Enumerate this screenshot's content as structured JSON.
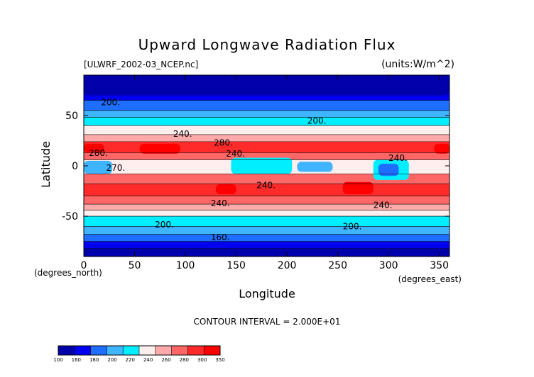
{
  "chart_data": {
    "type": "heatmap",
    "title": "Upward Longwave Radiation Flux",
    "file_label": "[ULWRF_2002-03_NCEP.nc]",
    "units_label": "(units:W/m^2)",
    "xlabel": "Longitude",
    "ylabel": "Latitude",
    "x_unit_label": "(degrees_east)",
    "y_unit_label": "(degrees_north)",
    "xlim": [
      0,
      360
    ],
    "ylim": [
      -90,
      90
    ],
    "x_ticks": [
      0,
      50,
      100,
      150,
      200,
      250,
      300,
      350
    ],
    "y_ticks": [
      -50,
      0,
      50
    ],
    "contour_interval_label": "CONTOUR INTERVAL = 2.000E+01",
    "contour_labels": [
      {
        "text": "200.",
        "lon": 17,
        "lat": 60
      },
      {
        "text": "200.",
        "lon": 220,
        "lat": 42
      },
      {
        "text": "240.",
        "lon": 88,
        "lat": 29
      },
      {
        "text": "280.",
        "lon": 128,
        "lat": 20
      },
      {
        "text": "240.",
        "lon": 140,
        "lat": 9
      },
      {
        "text": "280.",
        "lon": 5,
        "lat": 10
      },
      {
        "text": "270.",
        "lon": 22,
        "lat": -5
      },
      {
        "text": "240.",
        "lon": 300,
        "lat": 5
      },
      {
        "text": "240.",
        "lon": 170,
        "lat": -22
      },
      {
        "text": "240.",
        "lon": 125,
        "lat": -40
      },
      {
        "text": "240.",
        "lon": 285,
        "lat": -42
      },
      {
        "text": "200.",
        "lon": 70,
        "lat": -61
      },
      {
        "text": "200.",
        "lon": 255,
        "lat": -63
      },
      {
        "text": "160.",
        "lon": 125,
        "lat": -74
      }
    ],
    "colorbar": {
      "tick_labels": [
        "100",
        "160",
        "180",
        "200",
        "220",
        "240",
        "260",
        "280",
        "300",
        "350"
      ],
      "colors": [
        "#0000aa",
        "#0000f0",
        "#1e6eff",
        "#3fb4ff",
        "#00eeff",
        "#ffeeee",
        "#ffaaaa",
        "#ff6666",
        "#ff2a2a",
        "#ff0000"
      ]
    },
    "bands": [
      {
        "range": [
          -90,
          -82
        ],
        "level": 0
      },
      {
        "range": [
          -82,
          -75
        ],
        "level": 1
      },
      {
        "range": [
          -75,
          -68
        ],
        "level": 2
      },
      {
        "range": [
          -68,
          -60
        ],
        "level": 3
      },
      {
        "range": [
          -60,
          -50
        ],
        "level": 4
      },
      {
        "range": [
          -50,
          -44
        ],
        "level": 5
      },
      {
        "range": [
          -44,
          -38
        ],
        "level": 6
      },
      {
        "range": [
          -38,
          -30
        ],
        "level": 7
      },
      {
        "range": [
          -30,
          -18
        ],
        "level": 8
      },
      {
        "range": [
          -18,
          -8
        ],
        "level": 7
      },
      {
        "range": [
          -8,
          6
        ],
        "level": 5
      },
      {
        "range": [
          6,
          13
        ],
        "level": 7
      },
      {
        "range": [
          13,
          24
        ],
        "level": 8
      },
      {
        "range": [
          24,
          31
        ],
        "level": 6
      },
      {
        "range": [
          31,
          40
        ],
        "level": 5
      },
      {
        "range": [
          40,
          48
        ],
        "level": 4
      },
      {
        "range": [
          48,
          55
        ],
        "level": 3
      },
      {
        "range": [
          55,
          65
        ],
        "level": 2
      },
      {
        "range": [
          65,
          90
        ],
        "level": 1
      }
    ],
    "patches": [
      {
        "lon": [
          55,
          95
        ],
        "lat": [
          12,
          22
        ],
        "level": 9
      },
      {
        "lon": [
          0,
          20
        ],
        "lat": [
          13,
          22
        ],
        "level": 9
      },
      {
        "lon": [
          345,
          360
        ],
        "lat": [
          12,
          22
        ],
        "level": 9
      },
      {
        "lon": [
          0,
          28
        ],
        "lat": [
          -8,
          5
        ],
        "level": 3
      },
      {
        "lon": [
          145,
          205
        ],
        "lat": [
          -8,
          8
        ],
        "level": 4
      },
      {
        "lon": [
          210,
          245
        ],
        "lat": [
          -6,
          4
        ],
        "level": 3
      },
      {
        "lon": [
          285,
          320
        ],
        "lat": [
          -14,
          6
        ],
        "level": 4
      },
      {
        "lon": [
          290,
          310
        ],
        "lat": [
          -10,
          2
        ],
        "level": 2
      },
      {
        "lon": [
          130,
          150
        ],
        "lat": [
          -28,
          -18
        ],
        "level": 9
      },
      {
        "lon": [
          255,
          285
        ],
        "lat": [
          -28,
          -16
        ],
        "level": 9
      },
      {
        "lon": [
          0,
          360
        ],
        "lat": [
          70,
          90
        ],
        "level": 0
      }
    ]
  }
}
